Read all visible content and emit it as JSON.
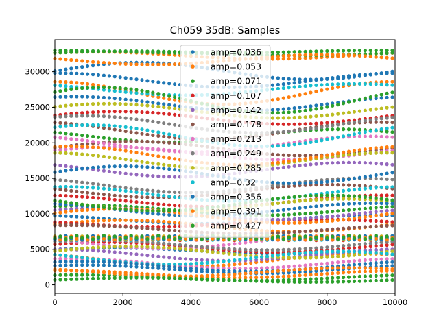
{
  "chart_data": {
    "type": "scatter",
    "title": "Ch059 35dB: Samples",
    "xlabel": "",
    "ylabel": "",
    "xlim": [
      0,
      10000
    ],
    "ylim": [
      -1200,
      34500
    ],
    "x_ticks": [
      0,
      2000,
      4000,
      6000,
      8000,
      10000
    ],
    "y_ticks": [
      0,
      5000,
      10000,
      15000,
      20000,
      25000,
      30000
    ],
    "grid": false,
    "legend_position": "top-center",
    "series": [
      {
        "name": "amp=0.036",
        "color": "#1f77b4",
        "baseline": 6600,
        "levels": [
          {
            "v": 30100,
            "a": 1200,
            "p": 0.0
          },
          {
            "v": 25500,
            "a": 1000,
            "p": 1.2
          },
          {
            "v": 9200,
            "a": 600,
            "p": 2.0
          },
          {
            "v": 4800,
            "a": 400,
            "p": 0.5
          },
          {
            "v": 2200,
            "a": 600,
            "p": 1.0
          }
        ]
      },
      {
        "name": "amp=0.053",
        "color": "#ff7f0e",
        "baseline": 6550,
        "levels": [
          {
            "v": 32300,
            "a": 500,
            "p": 0.8
          },
          {
            "v": 27000,
            "a": 1600,
            "p": 1.6
          },
          {
            "v": 8300,
            "a": 800,
            "p": 0.3
          },
          {
            "v": 3500,
            "a": 900,
            "p": 2.2
          },
          {
            "v": 1500,
            "a": 500,
            "p": 1.4
          }
        ]
      },
      {
        "name": "amp=0.071",
        "color": "#2ca02c",
        "baseline": 6700,
        "levels": [
          {
            "v": 32600,
            "a": 300,
            "p": 0.2
          },
          {
            "v": 21000,
            "a": 900,
            "p": 2.6
          },
          {
            "v": 10500,
            "a": 700,
            "p": 0.9
          },
          {
            "v": 1000,
            "a": 400,
            "p": 1.1
          }
        ]
      },
      {
        "name": "amp=0.107",
        "color": "#d62728",
        "baseline": 6500,
        "levels": [
          {
            "v": 23500,
            "a": 900,
            "p": 0.4
          },
          {
            "v": 11800,
            "a": 800,
            "p": 1.8
          },
          {
            "v": 8700,
            "a": 500,
            "p": 2.9
          },
          {
            "v": 5300,
            "a": 700,
            "p": 0.6
          }
        ]
      },
      {
        "name": "amp=0.142",
        "color": "#9467bd",
        "baseline": 6600,
        "levels": [
          {
            "v": 16200,
            "a": 1000,
            "p": 2.4
          },
          {
            "v": 10000,
            "a": 800,
            "p": 0.7
          },
          {
            "v": 4200,
            "a": 800,
            "p": 1.5
          }
        ]
      },
      {
        "name": "amp=0.178",
        "color": "#8c564b",
        "baseline": 6650,
        "levels": [
          {
            "v": 21700,
            "a": 1200,
            "p": 1.9
          },
          {
            "v": 19200,
            "a": 1000,
            "p": 0.1
          },
          {
            "v": 13200,
            "a": 900,
            "p": 2.8
          },
          {
            "v": 7800,
            "a": 600,
            "p": 1.2
          }
        ]
      },
      {
        "name": "amp=0.213",
        "color": "#e377c2",
        "baseline": 6550,
        "levels": [
          {
            "v": 19800,
            "a": 1100,
            "p": 2.1
          },
          {
            "v": 18500,
            "a": 900,
            "p": 0.5
          },
          {
            "v": 6000,
            "a": 900,
            "p": 2.7
          },
          {
            "v": 3000,
            "a": 700,
            "p": 1.3
          }
        ]
      },
      {
        "name": "amp=0.249",
        "color": "#7f7f7f",
        "baseline": 6600,
        "levels": [
          {
            "v": 22600,
            "a": 1200,
            "p": 1.0
          },
          {
            "v": 14000,
            "a": 1000,
            "p": 2.2
          },
          {
            "v": 5600,
            "a": 700,
            "p": 0.8
          }
        ]
      },
      {
        "name": "amp=0.285",
        "color": "#bcbd22",
        "baseline": 6600,
        "levels": [
          {
            "v": 24500,
            "a": 1000,
            "p": 0.6
          },
          {
            "v": 17500,
            "a": 1100,
            "p": 1.7
          },
          {
            "v": 11200,
            "a": 900,
            "p": 2.5
          },
          {
            "v": 4600,
            "a": 800,
            "p": 0.2
          }
        ]
      },
      {
        "name": "amp=0.32",
        "color": "#17becf",
        "baseline": 6550,
        "levels": [
          {
            "v": 27500,
            "a": 800,
            "p": 2.3
          },
          {
            "v": 21000,
            "a": 1500,
            "p": 0.9
          },
          {
            "v": 12800,
            "a": 1000,
            "p": 1.4
          },
          {
            "v": 3800,
            "a": 900,
            "p": 2.6
          }
        ]
      },
      {
        "name": "amp=0.356",
        "color": "#1f77b4",
        "baseline": 6650,
        "levels": [
          {
            "v": 28800,
            "a": 1000,
            "p": 1.5
          },
          {
            "v": 15500,
            "a": 1200,
            "p": 0.3
          },
          {
            "v": 10600,
            "a": 900,
            "p": 2.0
          },
          {
            "v": 2600,
            "a": 700,
            "p": 1.1
          }
        ]
      },
      {
        "name": "amp=0.391",
        "color": "#ff7f0e",
        "baseline": 6600,
        "levels": [
          {
            "v": 31700,
            "a": 700,
            "p": 2.9
          },
          {
            "v": 18200,
            "a": 1300,
            "p": 1.3
          },
          {
            "v": 9700,
            "a": 1000,
            "p": 0.4
          },
          {
            "v": 1800,
            "a": 600,
            "p": 2.4
          }
        ]
      },
      {
        "name": "amp=0.427",
        "color": "#2ca02c",
        "baseline": 6700,
        "levels": [
          {
            "v": 32800,
            "a": 200,
            "p": 1.8
          },
          {
            "v": 26000,
            "a": 1800,
            "p": 0.7
          },
          {
            "v": 11500,
            "a": 1100,
            "p": 2.8
          },
          {
            "v": 700,
            "a": 300,
            "p": 0.0
          }
        ]
      }
    ]
  }
}
